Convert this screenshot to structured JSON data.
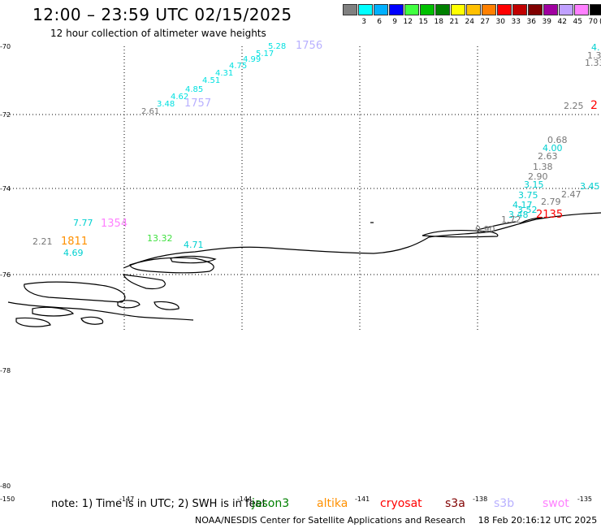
{
  "header": {
    "title": "12:00 – 23:59 UTC 02/15/2025",
    "subtitle": "12 hour collection of altimeter wave heights"
  },
  "colorbar": {
    "colors": [
      "#808080",
      "#00ffff",
      "#00b0ff",
      "#0000ff",
      "#40ff40",
      "#00c000",
      "#008000",
      "#ffff00",
      "#ffc000",
      "#ff8000",
      "#ff0000",
      "#c00000",
      "#800000",
      "#a000a0",
      "#c0a0ff",
      "#ff80ff",
      "#000000"
    ],
    "labels": [
      "3",
      "6",
      "9",
      "12",
      "15",
      "18",
      "21",
      "24",
      "27",
      "30",
      "33",
      "36",
      "39",
      "42",
      "45",
      "70"
    ],
    "unit": "(ft)"
  },
  "map": {
    "lat_labels": [
      "-70",
      "-72",
      "-74",
      "-76",
      "-78",
      "-80"
    ],
    "lon_labels": [
      "-150",
      "-147",
      "-144",
      "-141",
      "-138",
      "-135"
    ],
    "grid": true
  },
  "chart_data": {
    "type": "scatter",
    "title": "12:00 – 23:59 UTC 02/15/2025",
    "subtitle": "12 hour collection of altimeter wave heights",
    "unit": "ft",
    "observations": [
      {
        "sat": "s6",
        "value": "5.28",
        "color": "#00e0e0"
      },
      {
        "sat": "s6",
        "value": "5.17",
        "color": "#00e0e0"
      },
      {
        "sat": "s6",
        "value": "4.99",
        "color": "#00e0e0"
      },
      {
        "sat": "s6",
        "value": "4.75",
        "color": "#00e0e0"
      },
      {
        "sat": "s6",
        "value": "4.31",
        "color": "#00e0e0"
      },
      {
        "sat": "s6",
        "value": "4.51",
        "color": "#00e0e0"
      },
      {
        "sat": "s6",
        "value": "4.85",
        "color": "#00e0e0"
      },
      {
        "sat": "s6",
        "value": "4.62",
        "color": "#00e0e0"
      },
      {
        "sat": "s6",
        "value": "3.48",
        "color": "#00e0e0"
      },
      {
        "sat": "s3b",
        "value": "2.61",
        "color": "#777777"
      },
      {
        "sat": "s3b",
        "value": "1757",
        "color": "#b8b0ff"
      },
      {
        "sat": "s3b",
        "value": "1756",
        "color": "#b8b0ff"
      },
      {
        "sat": "swot",
        "value": "7.77",
        "color": "#00d0d0"
      },
      {
        "sat": "swot",
        "value": "1354",
        "color": "#ff80ff"
      },
      {
        "sat": "altika",
        "value": "2.21",
        "color": "#777777"
      },
      {
        "sat": "altika",
        "value": "1811",
        "color": "#ff9000"
      },
      {
        "sat": "altika",
        "value": "4.69",
        "color": "#00d0d0"
      },
      {
        "sat": "jason",
        "value": "13.32",
        "color": "#40e040"
      },
      {
        "sat": "jason",
        "value": "4.71",
        "color": "#00d0d0"
      },
      {
        "sat": "cryosat",
        "value": "0.68",
        "color": "#777777"
      },
      {
        "sat": "cryosat",
        "value": "4.00",
        "color": "#00d0d0"
      },
      {
        "sat": "cryosat",
        "value": "2.63",
        "color": "#777777"
      },
      {
        "sat": "cryosat",
        "value": "1.38",
        "color": "#777777"
      },
      {
        "sat": "cryosat",
        "value": "2.90",
        "color": "#777777"
      },
      {
        "sat": "cryosat",
        "value": "3.15",
        "color": "#00d0d0"
      },
      {
        "sat": "cryosat",
        "value": "3.75",
        "color": "#00d0d0"
      },
      {
        "sat": "cryosat",
        "value": "2.79",
        "color": "#777777"
      },
      {
        "sat": "cryosat",
        "value": "2.47",
        "color": "#777777"
      },
      {
        "sat": "cryosat",
        "value": "4.17",
        "color": "#00d0d0"
      },
      {
        "sat": "cryosat",
        "value": "3.52",
        "color": "#00d0d0"
      },
      {
        "sat": "cryosat",
        "value": "3.48",
        "color": "#00d0d0"
      },
      {
        "sat": "cryosat",
        "value": "1.72",
        "color": "#777777"
      },
      {
        "sat": "cryosat",
        "value": "0.90",
        "color": "#777777"
      },
      {
        "sat": "cryosat",
        "value": "2135",
        "color": "#ff0000"
      },
      {
        "sat": "cryosat",
        "value": "3.45",
        "color": "#00d0d0"
      },
      {
        "sat": "cryosat",
        "value": "2.25",
        "color": "#777777"
      },
      {
        "sat": "cryosat",
        "value": "2",
        "color": "#ff0000"
      },
      {
        "sat": "cryosat",
        "value": "1.3",
        "color": "#777777"
      },
      {
        "sat": "cryosat",
        "value": "1.33",
        "color": "#777777"
      },
      {
        "sat": "cryosat",
        "value": "4.",
        "color": "#00d0d0"
      }
    ]
  },
  "note": "note: 1) Time is in UTC; 2) SWH is in feet",
  "satellites": [
    {
      "name": "jason3",
      "color": "#008000"
    },
    {
      "name": "altika",
      "color": "#ff9000"
    },
    {
      "name": "cryosat",
      "color": "#ff0000"
    },
    {
      "name": "s3a",
      "color": "#800000"
    },
    {
      "name": "s3b",
      "color": "#b8b0ff"
    },
    {
      "name": "swot",
      "color": "#ff80ff"
    }
  ],
  "footer": {
    "credit": "NOAA/NESDIS Center for Satellite Applications and Research",
    "timestamp": "18 Feb 20:16:12 UTC 2025"
  }
}
